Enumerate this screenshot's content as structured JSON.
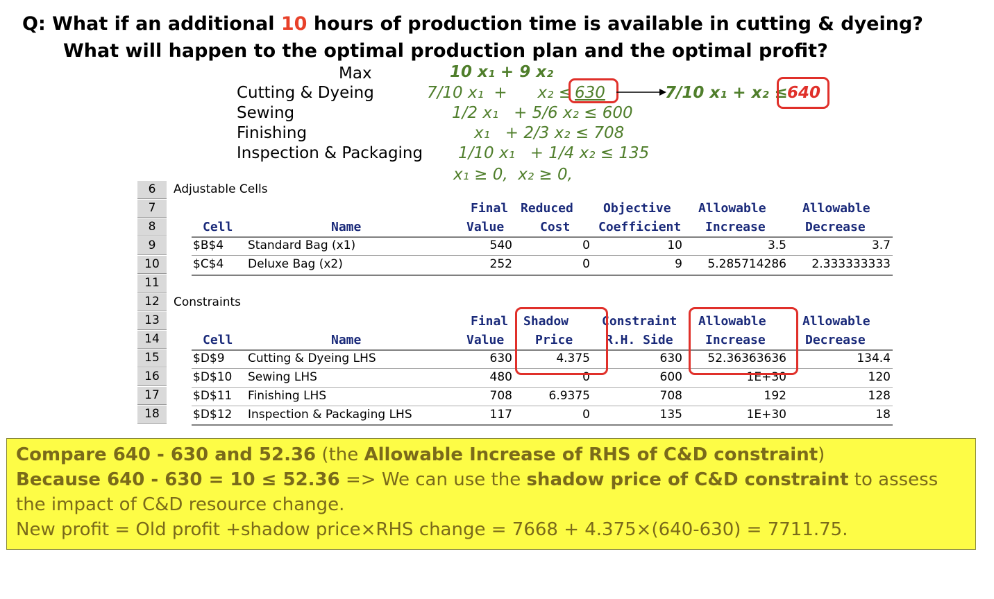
{
  "question": {
    "line1_a": "Q: What if an additional ",
    "line1_num": "10",
    "line1_b": " hours of production time is available in cutting & dyeing?",
    "line2": "What will happen to the optimal production plan and the optimal profit?"
  },
  "model": {
    "max_label": "Max",
    "objective": "10 x₁ + 9 x₂",
    "labels": [
      "Cutting & Dyeing",
      "Sewing",
      "Finishing",
      "Inspection & Packaging"
    ],
    "constraints": [
      "7/10 x₁  +      x₂ ≤",
      "1/2 x₁   + 5/6 x₂ ≤ 600",
      "x₁   + 2/3 x₂ ≤ 708",
      "1/10 x₁   + 1/4 x₂ ≤ 135"
    ],
    "cd_rhs": "630",
    "nonneg": "x₁ ≥ 0,  x₂ ≥ 0,",
    "new_constraint": "7/10 x₁ + x₂ ≤",
    "new_rhs": "640"
  },
  "sheet": {
    "row_numbers": [
      "6",
      "7",
      "8",
      "9",
      "10",
      "11",
      "12",
      "13",
      "14",
      "15",
      "16",
      "17",
      "18"
    ],
    "adjustable_title": "Adjustable Cells",
    "constraints_title": "Constraints",
    "adj_headers": {
      "cell": "Cell",
      "name": "Name",
      "final_value": [
        "Final",
        "Value"
      ],
      "reduced_cost": [
        "Reduced",
        "Cost"
      ],
      "obj_coef": [
        "Objective",
        "Coefficient"
      ],
      "allow_inc": [
        "Allowable",
        "Increase"
      ],
      "allow_dec": [
        "Allowable",
        "Decrease"
      ]
    },
    "adj_rows": [
      {
        "cell": "$B$4",
        "name": "Standard Bag (x1)",
        "final": "540",
        "reduced": "0",
        "coef": "10",
        "inc": "3.5",
        "dec": "3.7"
      },
      {
        "cell": "$C$4",
        "name": "Deluxe Bag (x2)",
        "final": "252",
        "reduced": "0",
        "coef": "9",
        "inc": "5.285714286",
        "dec": "2.333333333"
      }
    ],
    "con_headers": {
      "cell": "Cell",
      "name": "Name",
      "final_value": [
        "Final",
        "Value"
      ],
      "shadow_price": [
        "Shadow",
        "Price"
      ],
      "rhs": [
        "Constraint",
        "R.H. Side"
      ],
      "allow_inc": [
        "Allowable",
        "Increase"
      ],
      "allow_dec": [
        "Allowable",
        "Decrease"
      ]
    },
    "con_rows": [
      {
        "cell": "$D$9",
        "name": "Cutting & Dyeing LHS",
        "final": "630",
        "shadow": "4.375",
        "rhs": "630",
        "inc": "52.36363636",
        "dec": "134.4"
      },
      {
        "cell": "$D$10",
        "name": "Sewing LHS",
        "final": "480",
        "shadow": "0",
        "rhs": "600",
        "inc": "1E+30",
        "dec": "120"
      },
      {
        "cell": "$D$11",
        "name": "Finishing LHS",
        "final": "708",
        "shadow": "6.9375",
        "rhs": "708",
        "inc": "192",
        "dec": "128"
      },
      {
        "cell": "$D$12",
        "name": "Inspection & Packaging LHS",
        "final": "117",
        "shadow": "0",
        "rhs": "135",
        "inc": "1E+30",
        "dec": "18"
      }
    ]
  },
  "note": {
    "l1_b1": "Compare 640 - 630 and 52.36",
    "l1_t1": " (the ",
    "l1_b2": "Allowable Increase of RHS of C&D constraint",
    "l1_t2": ")",
    "l2_b1": "Because 640 - 630 = 10 ≤ 52.36",
    "l2_t1": " => We can use the ",
    "l2_b2": "shadow price of C&D constraint",
    "l2_t2": " to assess",
    "l3": "the impact of C&D resource change.",
    "l4": "New profit = Old profit +shadow price×RHS change = 7668 + 4.375×(640-630) = 7711.75."
  },
  "colors": {
    "highlight_red": "#e0302a",
    "equation_green": "#4f7e2b",
    "note_bg": "#fdfc46"
  }
}
